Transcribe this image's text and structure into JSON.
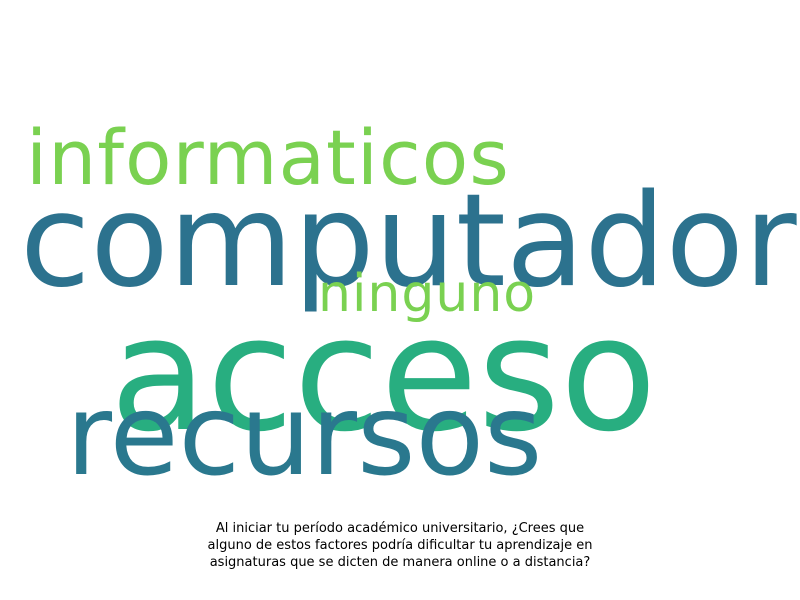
{
  "word_cloud": {
    "words": [
      {
        "id": "informaticos",
        "text": "informaticos",
        "color": "#7ad151"
      },
      {
        "id": "computador",
        "text": "computador",
        "color": "#2c728e"
      },
      {
        "id": "ninguno",
        "text": "ninguno",
        "color": "#7ad151"
      },
      {
        "id": "acceso",
        "text": "acceso",
        "color": "#28ae80"
      },
      {
        "id": "recursos",
        "text": "recursos",
        "color": "#2a788e"
      }
    ]
  },
  "caption": {
    "text": "Al iniciar tu período académico universitario, ¿Crees que\nalguno de estos factores podría dificultar tu aprendizaje en\nasignaturas que se dicten de manera online o a distancia?"
  }
}
